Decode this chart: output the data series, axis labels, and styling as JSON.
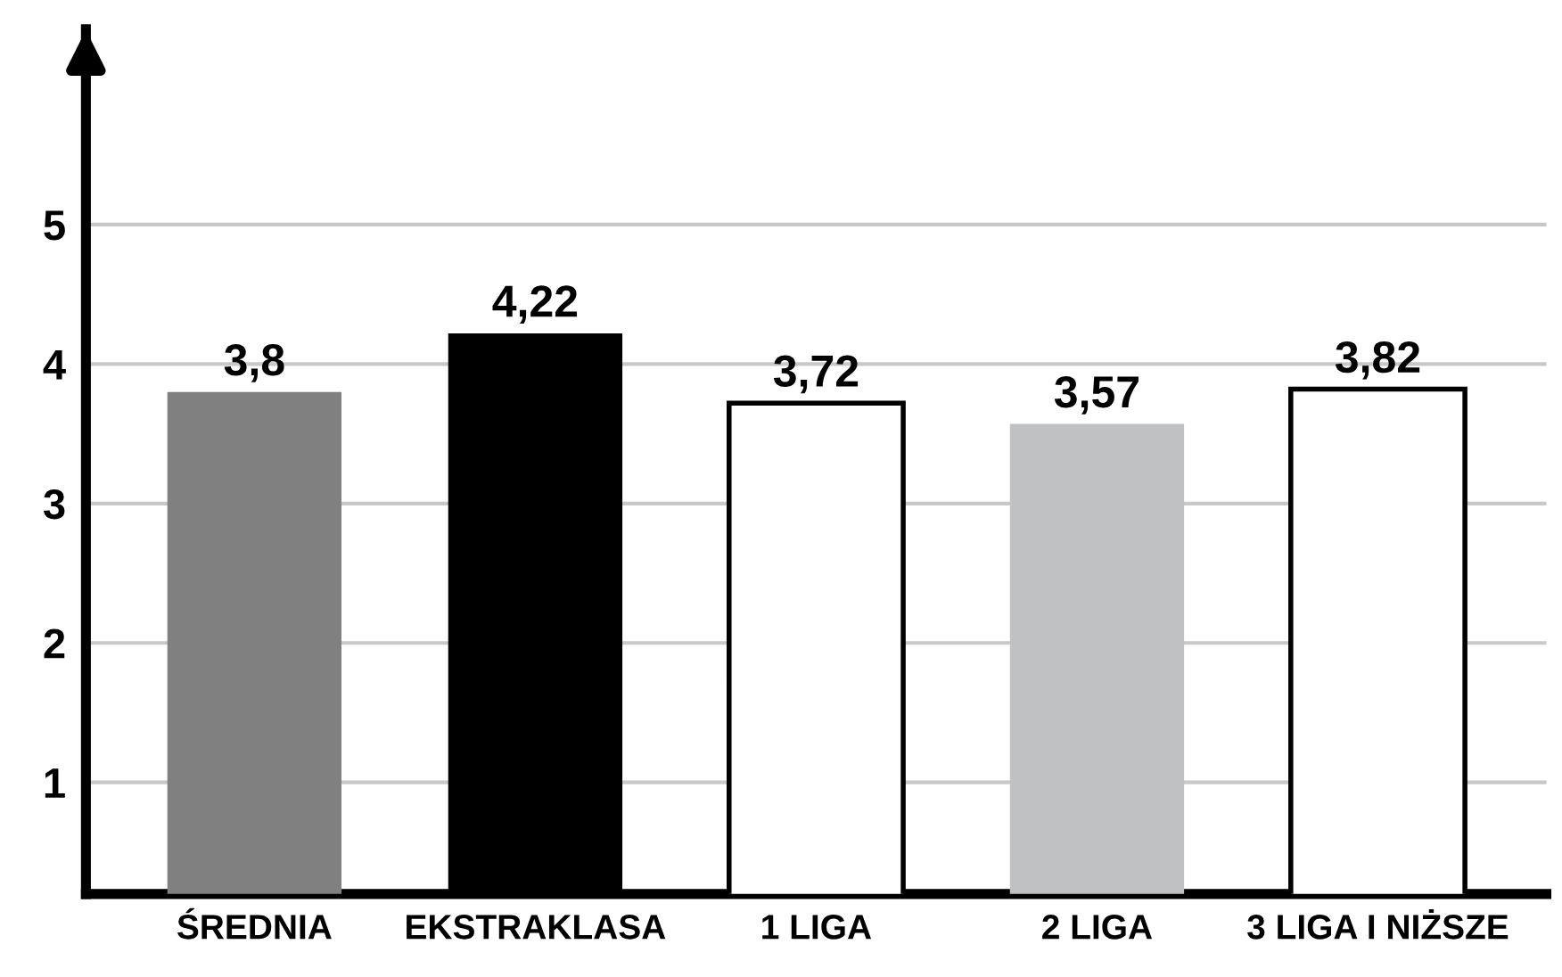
{
  "chart_data": {
    "type": "bar",
    "categories": [
      "ŚREDNIA",
      "EKSTRAKLASA",
      "1 LIGA",
      "2 LIGA",
      "3 LIGA I NIŻSZE"
    ],
    "values": [
      3.8,
      4.22,
      3.72,
      3.57,
      3.82
    ],
    "colors": [
      "#808080",
      "#000000",
      "#ffffff",
      "#c0c1c3",
      "#ffffff"
    ],
    "value_labels": [
      "3,8",
      "4,22",
      "3,72",
      "3,57",
      "3,82"
    ],
    "ylim": [
      0.2,
      6.4
    ],
    "yticks": [
      1,
      2,
      3,
      4,
      5
    ],
    "grid": "y"
  }
}
